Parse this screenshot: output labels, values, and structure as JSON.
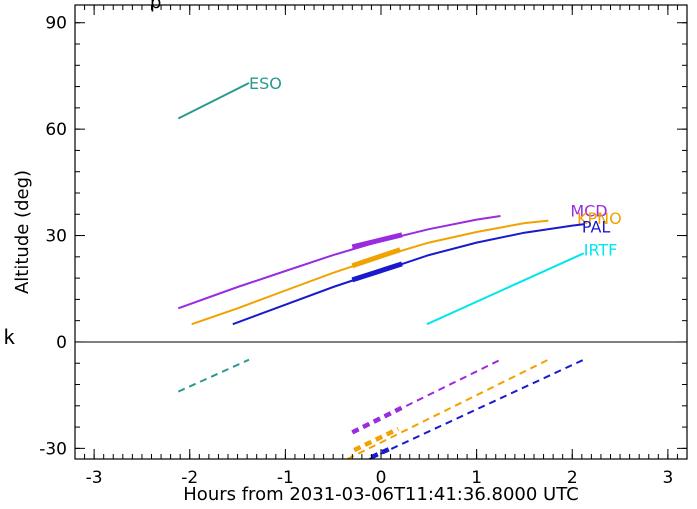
{
  "chart_data": {
    "type": "line",
    "title": "",
    "title_fragment": "p",
    "xlabel": "Hours from 2031-03-06T11:41:36.8000 UTC",
    "ylabel": "Altitude (deg)",
    "xlim": [
      -3.2,
      3.2
    ],
    "ylim": [
      -33,
      95
    ],
    "x_ticks": [
      -3,
      -2,
      -1,
      0,
      1,
      2,
      3
    ],
    "y_ticks": [
      -30,
      0,
      30,
      60,
      90
    ],
    "grid": false,
    "left_annotation": "k",
    "reference_line": 0,
    "series": [
      {
        "name": "ESO",
        "color": "#2a9a8e",
        "label_at": [
          -1.38,
          73
        ],
        "above": {
          "x": [
            -2.12,
            -1.38
          ],
          "y": [
            63,
            73
          ]
        },
        "below": {
          "x": [
            -2.12,
            -1.38
          ],
          "y": [
            -14,
            -5
          ]
        }
      },
      {
        "name": "MCD",
        "color": "#9a2ce0",
        "label_at": [
          1.98,
          37
        ],
        "above": {
          "x": [
            -2.12,
            -1.5,
            -1.0,
            -0.5,
            0.0,
            0.5,
            1.0,
            1.25
          ],
          "y": [
            9.5,
            15.5,
            20,
            24.5,
            28.5,
            31.8,
            34.5,
            35.5
          ]
        },
        "highlight": {
          "x": [
            -0.3,
            0.22
          ],
          "y": [
            26.8,
            30.2
          ]
        },
        "below": {
          "x": [
            -0.3,
            1.25
          ],
          "y": [
            -25.5,
            -5
          ]
        },
        "below_highlight": {
          "x": [
            -0.3,
            0.22
          ],
          "y": [
            -25.5,
            -18.5
          ]
        }
      },
      {
        "name": "KPNO",
        "color": "#f2a200",
        "label_at": [
          2.05,
          35
        ],
        "above": {
          "x": [
            -1.98,
            -1.5,
            -1.0,
            -0.5,
            0.0,
            0.5,
            1.0,
            1.5,
            1.75
          ],
          "y": [
            5.0,
            9.5,
            14.5,
            19.5,
            24,
            28,
            31,
            33.5,
            34.2
          ]
        },
        "highlight": {
          "x": [
            -0.3,
            0.2
          ],
          "y": [
            21.5,
            26
          ]
        },
        "below": {
          "x": [
            -0.35,
            1.75
          ],
          "y": [
            -33,
            -5
          ]
        },
        "below_highlight": {
          "x": [
            -0.28,
            0.18
          ],
          "y": [
            -30.5,
            -24.5
          ]
        }
      },
      {
        "name": "PAL",
        "color": "#1a1acc",
        "label_at": [
          2.1,
          32.5
        ],
        "above": {
          "x": [
            -1.55,
            -1.0,
            -0.5,
            0.0,
            0.5,
            1.0,
            1.5,
            2.0,
            2.12
          ],
          "y": [
            5,
            10.5,
            15.5,
            20,
            24.5,
            28,
            30.8,
            32.8,
            33.2
          ]
        },
        "highlight": {
          "x": [
            -0.3,
            0.22
          ],
          "y": [
            17.5,
            22
          ]
        },
        "below": {
          "x": [
            -0.12,
            2.12
          ],
          "y": [
            -33,
            -5
          ]
        },
        "below_highlight": {
          "x": [
            -0.1,
            0.1
          ],
          "y": [
            -32.5,
            -30
          ]
        }
      },
      {
        "name": "IRTF",
        "color": "#00e6ee",
        "label_at": [
          2.12,
          26
        ],
        "above": {
          "x": [
            0.48,
            2.12
          ],
          "y": [
            5,
            25
          ]
        }
      }
    ]
  }
}
